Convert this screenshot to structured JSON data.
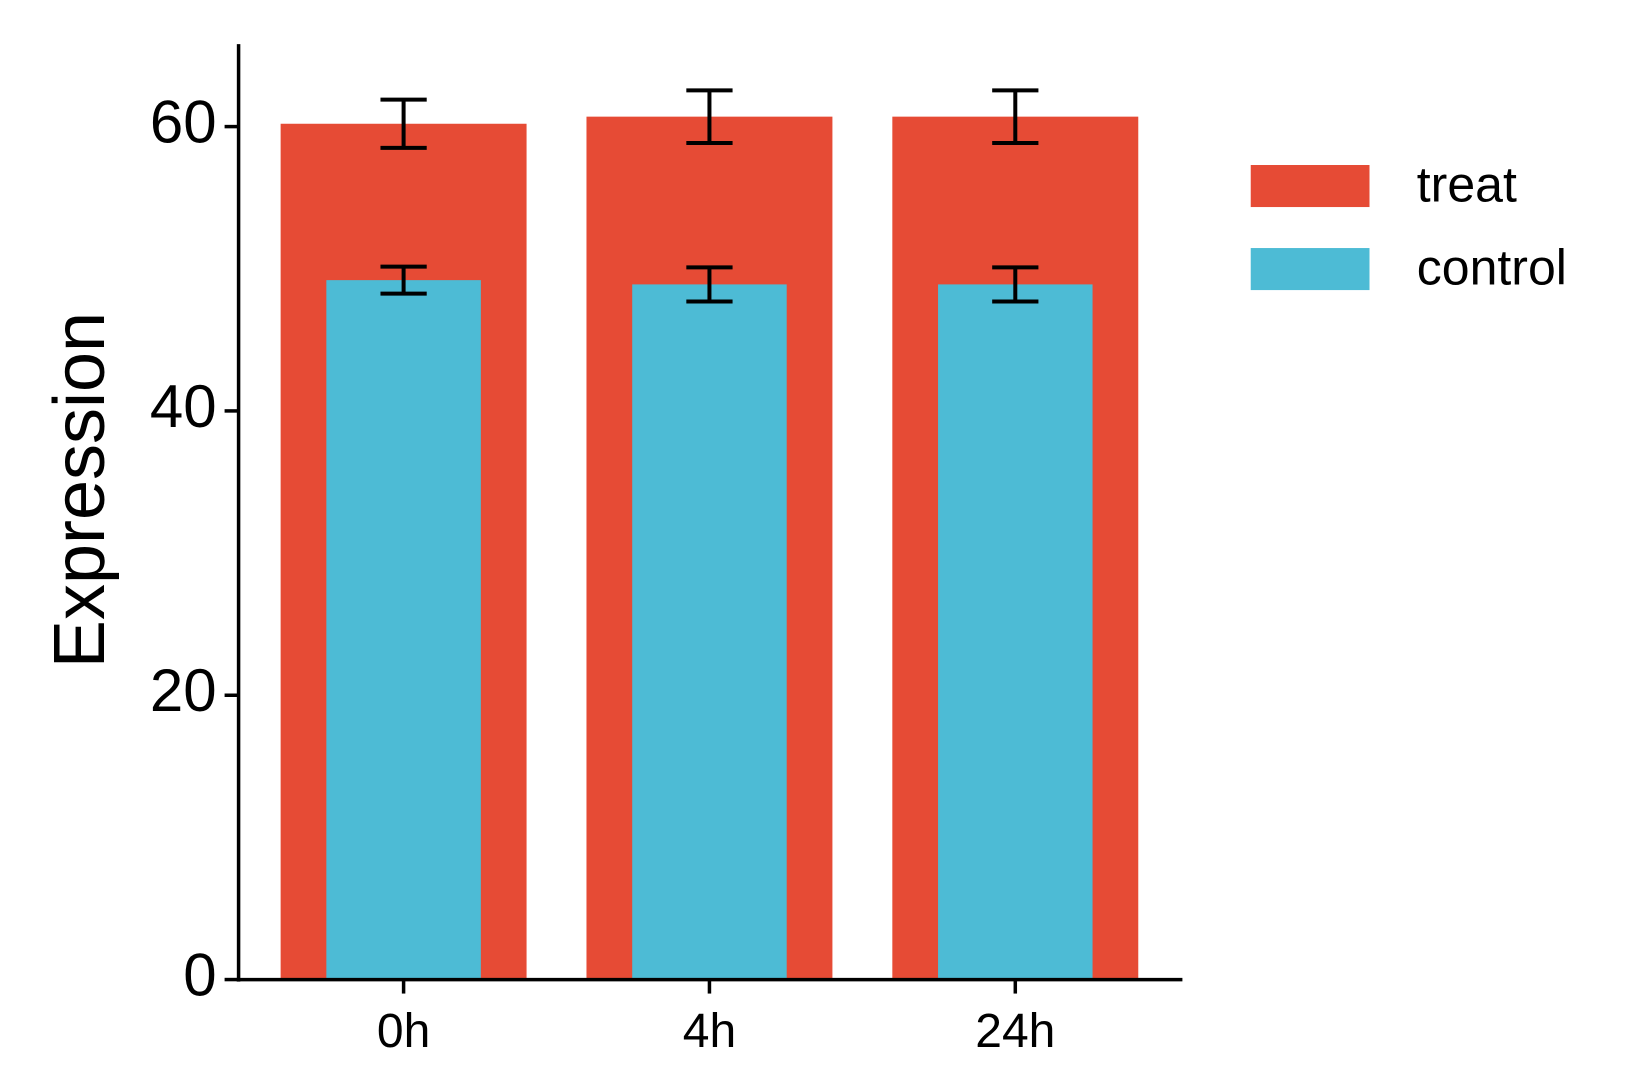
{
  "chart_data": {
    "type": "bar",
    "bar_mode": "overlay",
    "y_label": "Expression",
    "categories": [
      "0h",
      "4h",
      "24h"
    ],
    "series": [
      {
        "name": "treat",
        "color": "#e64b35",
        "values": [
          60.2,
          60.7,
          60.7
        ],
        "errors": [
          1.7,
          1.85,
          1.85
        ]
      },
      {
        "name": "control",
        "color": "#4dbbd5",
        "values": [
          49.2,
          48.9,
          48.9
        ],
        "errors": [
          0.95,
          1.2,
          1.2
        ]
      }
    ],
    "ylim": [
      0,
      65.8
    ],
    "yticks": [
      0,
      20,
      40,
      60
    ],
    "grid": false,
    "legend": "right"
  }
}
